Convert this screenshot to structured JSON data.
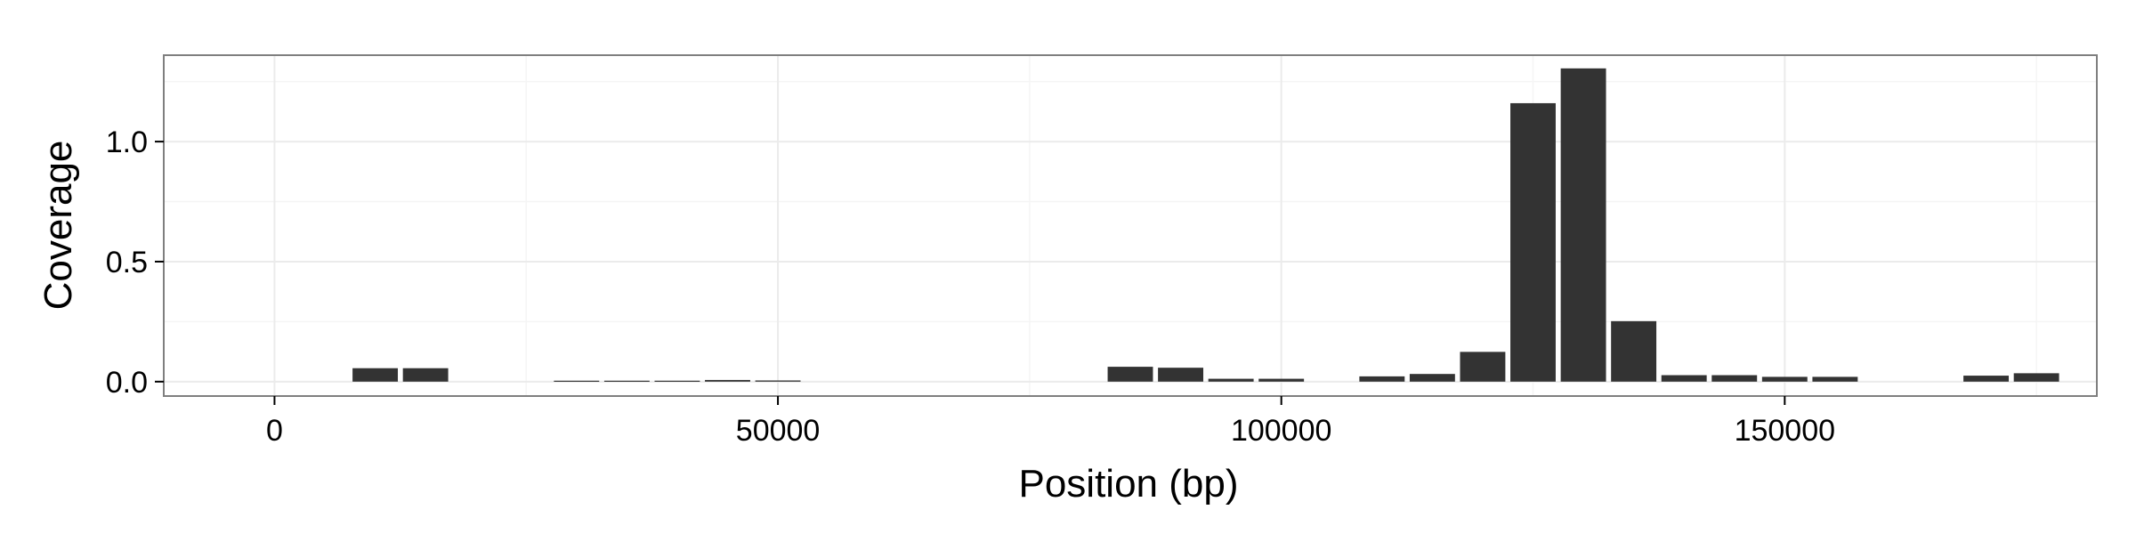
{
  "chart_data": {
    "type": "bar",
    "title": "",
    "xlabel": "Position (bp)",
    "ylabel": "Coverage",
    "xlim": [
      -11000,
      181000
    ],
    "ylim": [
      -0.06,
      1.36
    ],
    "x_ticks": [
      0,
      50000,
      100000,
      150000
    ],
    "x_tick_labels": [
      "0",
      "50000",
      "100000",
      "150000"
    ],
    "y_ticks": [
      0.0,
      0.5,
      1.0
    ],
    "y_tick_labels": [
      "0.0",
      "0.5",
      "1.0"
    ],
    "grid": true,
    "bar_width": 4500,
    "bar_color": "#333333",
    "panel_border_color": "#7f7f7f",
    "grid_color": "#ebebeb",
    "x": [
      10000,
      15000,
      30000,
      35000,
      40000,
      45000,
      50000,
      85000,
      90000,
      95000,
      100000,
      110000,
      115000,
      120000,
      125000,
      130000,
      135000,
      140000,
      145000,
      150000,
      155000,
      170000,
      175000
    ],
    "values": [
      0.056,
      0.056,
      0.004,
      0.004,
      0.004,
      0.007,
      0.005,
      0.062,
      0.058,
      0.012,
      0.012,
      0.022,
      0.032,
      0.124,
      1.16,
      1.305,
      0.252,
      0.027,
      0.027,
      0.02,
      0.02,
      0.025,
      0.035
    ]
  }
}
